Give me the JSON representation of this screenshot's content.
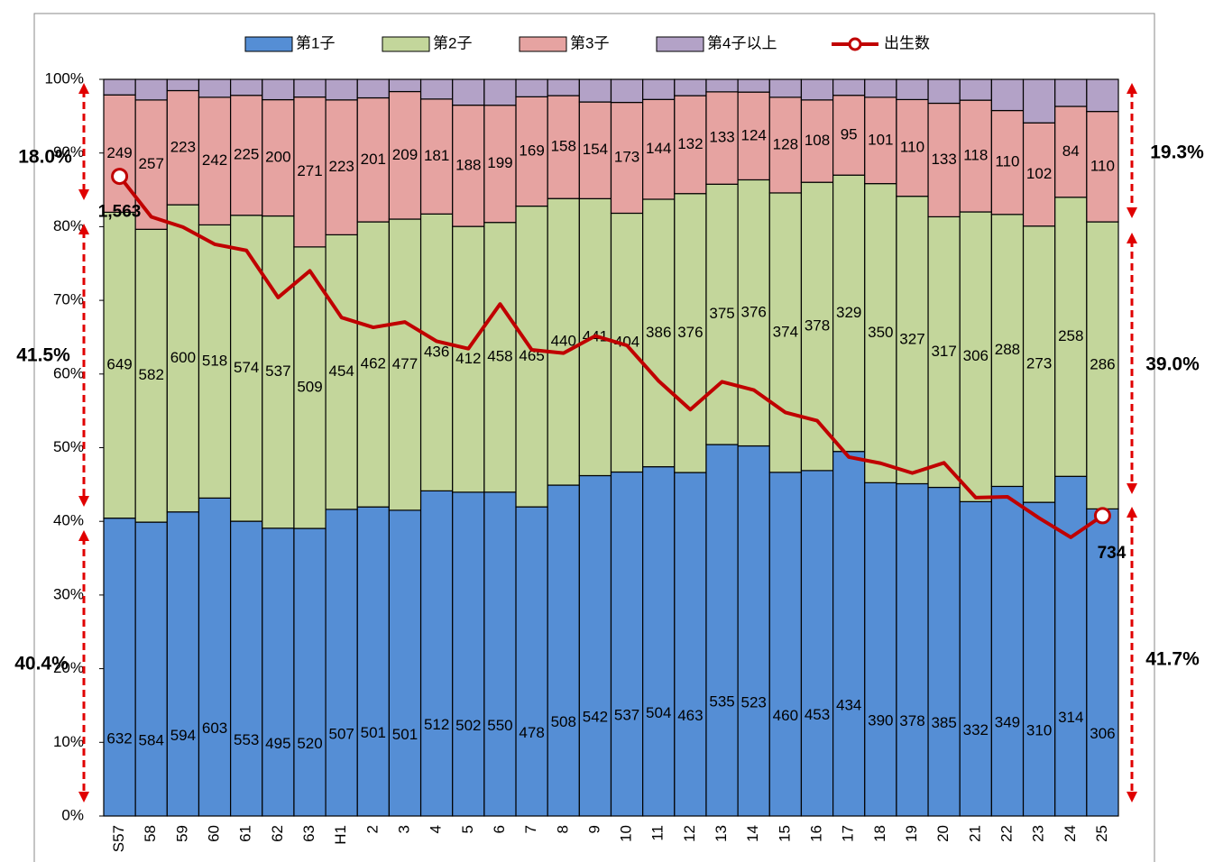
{
  "chart_data": {
    "type": "stacked_percent_bar",
    "categories": [
      "S57",
      "58",
      "59",
      "60",
      "61",
      "62",
      "63",
      "H1",
      "2",
      "3",
      "4",
      "5",
      "6",
      "7",
      "8",
      "9",
      "10",
      "11",
      "12",
      "13",
      "14",
      "15",
      "16",
      "17",
      "18",
      "19",
      "20",
      "21",
      "22",
      "23",
      "24",
      "25"
    ],
    "series": [
      {
        "name": "第1子",
        "color": "#558ed5",
        "show_labels": true,
        "values": [
          632,
          584,
          594,
          603,
          553,
          495,
          520,
          507,
          501,
          501,
          512,
          502,
          550,
          478,
          508,
          542,
          537,
          504,
          463,
          535,
          523,
          460,
          453,
          434,
          390,
          378,
          385,
          332,
          349,
          310,
          314,
          306
        ]
      },
      {
        "name": "第2子",
        "color": "#c3d69b",
        "show_labels": true,
        "values": [
          649,
          582,
          600,
          518,
          574,
          537,
          509,
          454,
          462,
          477,
          436,
          412,
          458,
          465,
          440,
          441,
          404,
          386,
          376,
          375,
          376,
          374,
          378,
          329,
          350,
          327,
          317,
          306,
          288,
          273,
          258,
          286
        ]
      },
      {
        "name": "第3子",
        "color": "#e6a3a1",
        "show_labels": true,
        "values": [
          249,
          257,
          223,
          242,
          225,
          200,
          271,
          223,
          201,
          209,
          181,
          188,
          199,
          169,
          158,
          154,
          173,
          144,
          132,
          133,
          124,
          128,
          108,
          95,
          101,
          110,
          133,
          118,
          110,
          102,
          84,
          110
        ]
      },
      {
        "name": "第4子以上",
        "color": "#b3a2c7",
        "show_labels": false,
        "values": [
          33,
          41,
          22,
          34,
          30,
          35,
          32,
          34,
          30,
          20,
          31,
          40,
          44,
          27,
          25,
          36,
          36,
          29,
          22,
          18,
          18,
          24,
          27,
          19,
          21,
          23,
          28,
          22,
          33,
          43,
          25,
          32
        ]
      }
    ],
    "line": {
      "name": "出生数",
      "color": "#c00000",
      "axis": "y2",
      "values": [
        1563,
        1464,
        1439,
        1397,
        1382,
        1267,
        1332,
        1218,
        1194,
        1207,
        1160,
        1142,
        1251,
        1139,
        1131,
        1173,
        1150,
        1063,
        993,
        1061,
        1041,
        986,
        966,
        877,
        862,
        838,
        863,
        778,
        780,
        728,
        681,
        734
      ],
      "value_labels": [
        "1,563",
        null,
        null,
        null,
        null,
        null,
        null,
        null,
        null,
        null,
        null,
        null,
        null,
        null,
        null,
        null,
        null,
        null,
        null,
        null,
        null,
        null,
        null,
        null,
        null,
        null,
        null,
        null,
        null,
        null,
        null,
        "734"
      ]
    },
    "ylim": [
      0,
      100
    ],
    "yticks": [
      {
        "value": 0,
        "label": "0%"
      },
      {
        "value": 10,
        "label": "10%"
      },
      {
        "value": 20,
        "label": "20%"
      },
      {
        "value": 30,
        "label": "30%"
      },
      {
        "value": 40,
        "label": "40%"
      },
      {
        "value": 50,
        "label": "50%"
      },
      {
        "value": 60,
        "label": "60%"
      },
      {
        "value": 70,
        "label": "70%"
      },
      {
        "value": 80,
        "label": "80%"
      },
      {
        "value": 90,
        "label": "90%"
      },
      {
        "value": 100,
        "label": "100%"
      }
    ],
    "y2lim": [
      0,
      1800
    ],
    "annotations": [
      "18.0%",
      "41.5%",
      "40.4%",
      "19.3%",
      "39.0%",
      "41.7%"
    ]
  }
}
